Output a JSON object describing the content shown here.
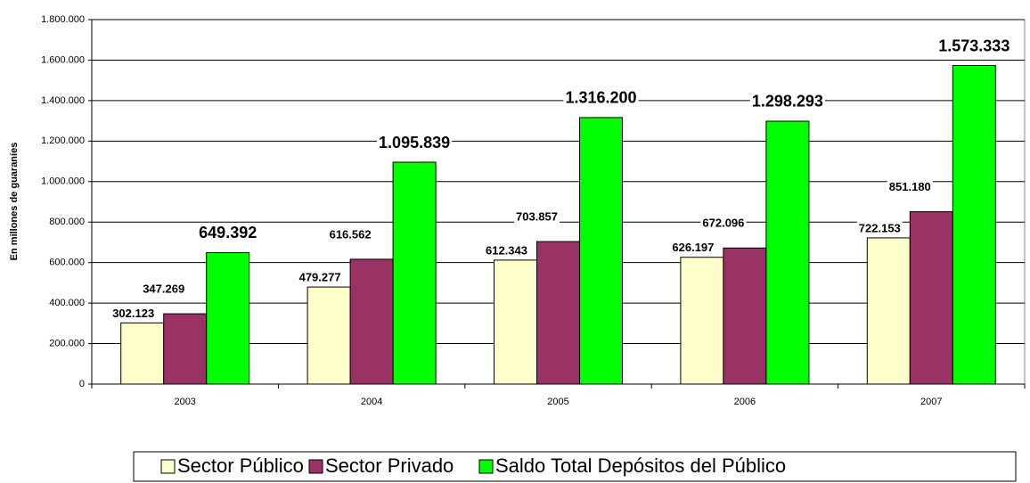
{
  "chart_data": {
    "type": "bar",
    "y_label": "En millones de guaraníes",
    "categories": [
      "2003",
      "2004",
      "2005",
      "2006",
      "2007"
    ],
    "series": [
      {
        "name": "Sector Público",
        "color": "#ffffcc",
        "values": [
          302123,
          479277,
          612343,
          626197,
          722153
        ],
        "value_labels": [
          "302.123",
          "479.277",
          "612.343",
          "626.197",
          "722.153"
        ]
      },
      {
        "name": "Sector Privado",
        "color": "#993366",
        "values": [
          347269,
          616562,
          703857,
          672096,
          851180
        ],
        "value_labels": [
          "347.269",
          "616.562",
          "703.857",
          "672.096",
          "851.180"
        ]
      },
      {
        "name": "Saldo Total Depósitos del Público",
        "color": "#00ff00",
        "values": [
          649392,
          1095839,
          1316200,
          1298293,
          1573333
        ],
        "value_labels": [
          "649.392",
          "1.095.839",
          "1.316.200",
          "1.298.293",
          "1.573.333"
        ]
      }
    ],
    "ylim": [
      0,
      1800000
    ],
    "yticks": [
      0,
      {
        "value": 200000,
        "label": "200.000"
      },
      {
        "value": 400000,
        "label": "400.000"
      },
      {
        "value": 600000,
        "label": "600.000"
      },
      {
        "value": 800000,
        "label": "800.000"
      },
      {
        "value": 1000000,
        "label": "1.000.000"
      },
      {
        "value": 1200000,
        "label": "1.200.000"
      },
      {
        "value": 1400000,
        "label": "1.400.000"
      },
      {
        "value": 1600000,
        "label": "1.600.000"
      },
      {
        "value": 1800000,
        "label": "1.800.000"
      }
    ],
    "grid": true,
    "legend": "bottom"
  }
}
